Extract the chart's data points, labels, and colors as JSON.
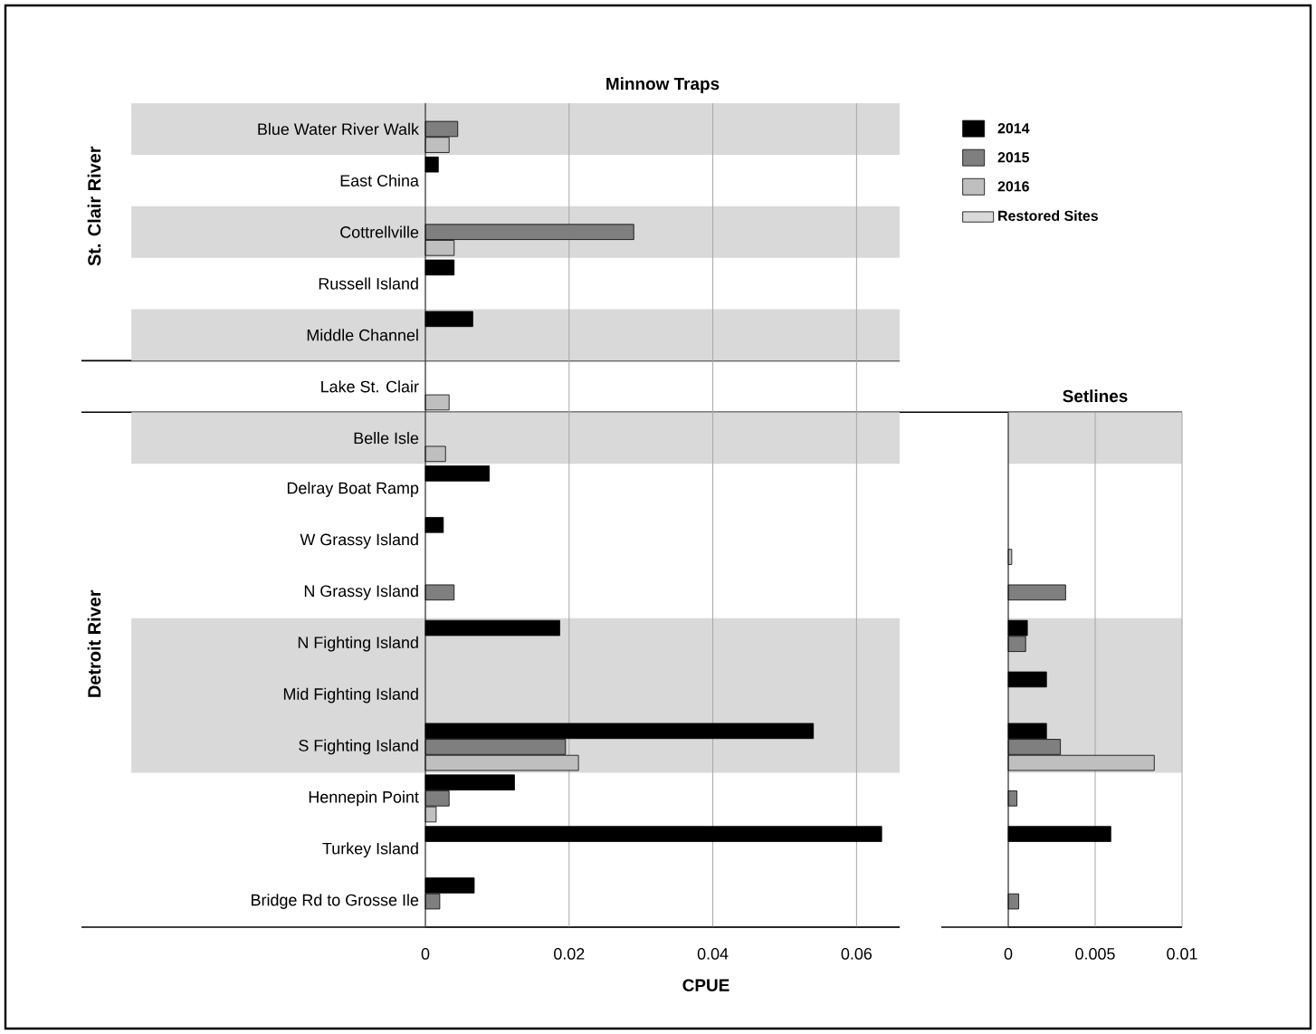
{
  "chart_data": [
    {
      "type": "bar",
      "orientation": "horizontal",
      "title": "Minnow Traps",
      "xlabel": "CPUE",
      "categories": [
        "Blue Water River Walk",
        "East China",
        "Cottrellville",
        "Russell Island",
        "Middle Channel",
        "Lake St. Clair",
        "Belle Isle",
        "Delray Boat Ramp",
        "W Grassy Island",
        "N Grassy Island",
        "N Fighting Island",
        "Mid Fighting Island",
        "S Fighting Island",
        "Hennepin Point",
        "Turkey Island",
        "Bridge Rd to Grosse Ile"
      ],
      "series": [
        {
          "name": "2014",
          "color": "#000000",
          "values": [
            null,
            0.0018,
            null,
            0.004,
            0.0066,
            null,
            null,
            0.0089,
            0.0025,
            null,
            0.0187,
            null,
            0.054,
            0.0124,
            0.0635,
            0.0068
          ]
        },
        {
          "name": "2015",
          "color": "#7f7f7f",
          "values": [
            0.0045,
            null,
            0.029,
            null,
            null,
            null,
            null,
            null,
            null,
            0.004,
            null,
            null,
            0.0195,
            0.0033,
            null,
            0.002
          ]
        },
        {
          "name": "2016",
          "color": "#bfbfbf",
          "values": [
            0.0033,
            null,
            0.004,
            null,
            null,
            0.0033,
            0.0028,
            null,
            null,
            null,
            null,
            null,
            0.0213,
            0.0015,
            null,
            null
          ]
        }
      ],
      "xlim": [
        0,
        0.066
      ],
      "xticks": [
        0,
        0.02,
        0.04,
        0.06
      ],
      "grid": "x",
      "legend": "top right",
      "bands": [
        {
          "axis": "y",
          "from": "Blue Water River Walk",
          "to": "Blue Water River Walk",
          "label": "Restored Sites",
          "color": "#d9d9d9"
        },
        {
          "axis": "y",
          "from": "Cottrellville",
          "to": "Cottrellville",
          "color": "#d9d9d9"
        },
        {
          "axis": "y",
          "from": "Middle Channel",
          "to": "Middle Channel",
          "color": "#d9d9d9"
        },
        {
          "axis": "y",
          "from": "Belle Isle",
          "to": "Belle Isle",
          "color": "#d9d9d9"
        },
        {
          "axis": "y",
          "from": "N Fighting Island",
          "to": "S Fighting Island",
          "color": "#d9d9d9"
        }
      ],
      "annotations": [
        "St. Clair River",
        "Detroit River"
      ]
    },
    {
      "type": "bar",
      "orientation": "horizontal",
      "title": "Setlines",
      "tick_labels": "x",
      "categories": [
        "Belle Isle",
        "Delray Boat Ramp",
        "W Grassy Island",
        "N Grassy Island",
        "N Fighting Island",
        "Mid Fighting Island",
        "S Fighting Island",
        "Hennepin Point",
        "Turkey Island",
        "Bridge Rd to Grosse Ile"
      ],
      "series": [
        {
          "color": "#000000",
          "values": [
            null,
            null,
            null,
            null,
            0.0011,
            0.0022,
            0.0022,
            null,
            0.0059,
            null
          ]
        },
        {
          "color": "#7f7f7f",
          "values": [
            null,
            null,
            null,
            0.0033,
            0.001,
            null,
            0.003,
            0.0005,
            null,
            0.0006
          ]
        },
        {
          "color": "#bfbfbf",
          "values": [
            null,
            null,
            0.0002,
            null,
            null,
            null,
            0.0084,
            null,
            null,
            null
          ]
        }
      ],
      "xlim": [
        0,
        0.01
      ],
      "xticks": [
        0,
        0.005,
        0.01
      ],
      "grid": "x",
      "bands": [
        {
          "axis": "y",
          "from": "Belle Isle",
          "to": "Belle Isle",
          "color": "#d9d9d9"
        },
        {
          "axis": "y",
          "from": "N Fighting Island",
          "to": "S Fighting Island",
          "color": "#d9d9d9"
        }
      ]
    }
  ]
}
